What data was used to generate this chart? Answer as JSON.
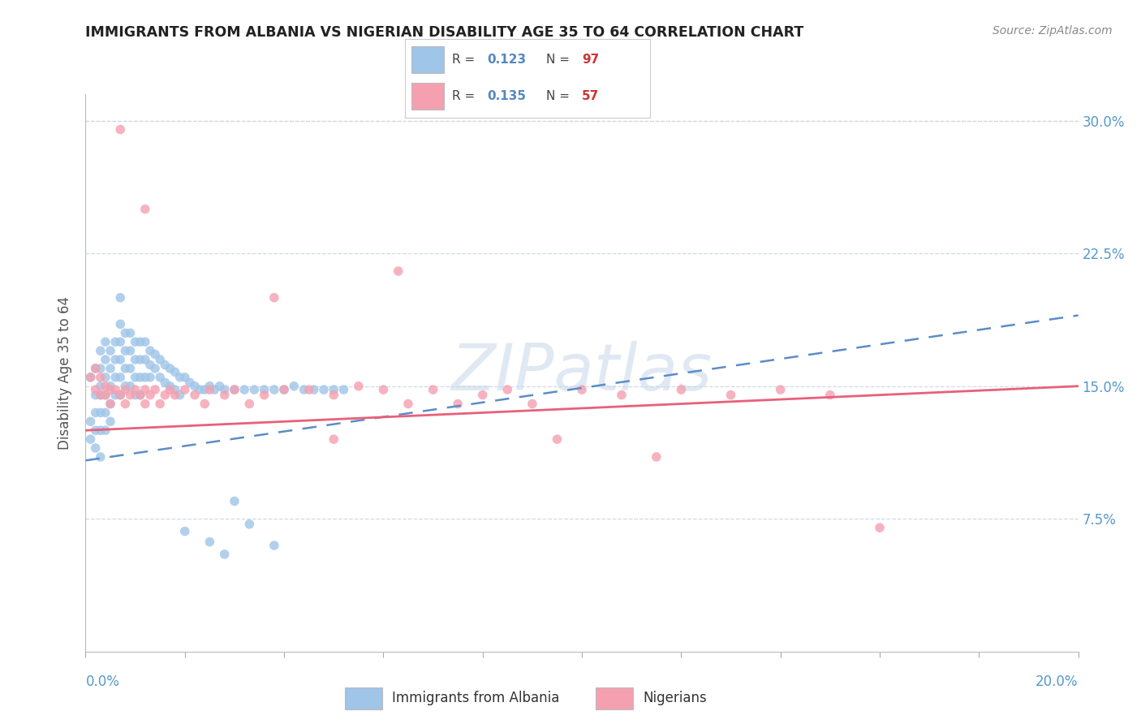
{
  "title": "IMMIGRANTS FROM ALBANIA VS NIGERIAN DISABILITY AGE 35 TO 64 CORRELATION CHART",
  "source": "Source: ZipAtlas.com",
  "ylabel": "Disability Age 35 to 64",
  "xmin": 0.0,
  "xmax": 0.2,
  "ymin": 0.0,
  "ymax": 0.315,
  "albania_color": "#9fc5e8",
  "nigeria_color": "#f4a0b0",
  "albania_trend_color": "#5b8dc8",
  "nigeria_trend_color": "#e8607a",
  "axis_label_color": "#5599cc",
  "title_color": "#222222",
  "source_color": "#888888",
  "grid_color": "#d0d8e8",
  "bg_color": "#ffffff",
  "watermark": "ZIPatlas",
  "watermark_color": "#c8d8ea",
  "ytick_vals": [
    0.075,
    0.15,
    0.225,
    0.3
  ],
  "ytick_labels": [
    "7.5%",
    "15.0%",
    "22.5%",
    "30.0%"
  ],
  "legend_R_color": "#5588bb",
  "legend_N_color": "#cc3333",
  "alb_x": [
    0.001,
    0.001,
    0.001,
    0.002,
    0.002,
    0.002,
    0.002,
    0.002,
    0.003,
    0.003,
    0.003,
    0.003,
    0.003,
    0.003,
    0.003,
    0.004,
    0.004,
    0.004,
    0.004,
    0.004,
    0.004,
    0.005,
    0.005,
    0.005,
    0.005,
    0.005,
    0.006,
    0.006,
    0.006,
    0.006,
    0.007,
    0.007,
    0.007,
    0.007,
    0.007,
    0.007,
    0.008,
    0.008,
    0.008,
    0.008,
    0.009,
    0.009,
    0.009,
    0.009,
    0.01,
    0.01,
    0.01,
    0.01,
    0.011,
    0.011,
    0.011,
    0.011,
    0.012,
    0.012,
    0.012,
    0.013,
    0.013,
    0.013,
    0.014,
    0.014,
    0.015,
    0.015,
    0.016,
    0.016,
    0.017,
    0.017,
    0.018,
    0.018,
    0.019,
    0.019,
    0.02,
    0.021,
    0.022,
    0.023,
    0.024,
    0.025,
    0.026,
    0.027,
    0.028,
    0.03,
    0.032,
    0.034,
    0.036,
    0.038,
    0.04,
    0.042,
    0.044,
    0.046,
    0.048,
    0.05,
    0.052,
    0.03,
    0.02,
    0.025,
    0.028,
    0.033,
    0.038
  ],
  "alb_y": [
    0.13,
    0.155,
    0.12,
    0.16,
    0.145,
    0.135,
    0.125,
    0.115,
    0.17,
    0.16,
    0.15,
    0.145,
    0.135,
    0.125,
    0.11,
    0.175,
    0.165,
    0.155,
    0.145,
    0.135,
    0.125,
    0.17,
    0.16,
    0.15,
    0.14,
    0.13,
    0.175,
    0.165,
    0.155,
    0.145,
    0.2,
    0.185,
    0.175,
    0.165,
    0.155,
    0.145,
    0.18,
    0.17,
    0.16,
    0.15,
    0.18,
    0.17,
    0.16,
    0.15,
    0.175,
    0.165,
    0.155,
    0.145,
    0.175,
    0.165,
    0.155,
    0.145,
    0.175,
    0.165,
    0.155,
    0.17,
    0.162,
    0.155,
    0.168,
    0.16,
    0.165,
    0.155,
    0.162,
    0.152,
    0.16,
    0.15,
    0.158,
    0.148,
    0.155,
    0.145,
    0.155,
    0.152,
    0.15,
    0.148,
    0.148,
    0.15,
    0.148,
    0.15,
    0.148,
    0.148,
    0.148,
    0.148,
    0.148,
    0.148,
    0.148,
    0.15,
    0.148,
    0.148,
    0.148,
    0.148,
    0.148,
    0.085,
    0.068,
    0.062,
    0.055,
    0.072,
    0.06
  ],
  "nig_x": [
    0.001,
    0.002,
    0.002,
    0.003,
    0.003,
    0.004,
    0.004,
    0.005,
    0.005,
    0.006,
    0.007,
    0.008,
    0.008,
    0.009,
    0.01,
    0.011,
    0.012,
    0.012,
    0.013,
    0.014,
    0.015,
    0.016,
    0.017,
    0.018,
    0.02,
    0.022,
    0.024,
    0.025,
    0.028,
    0.03,
    0.033,
    0.036,
    0.04,
    0.045,
    0.05,
    0.05,
    0.055,
    0.06,
    0.065,
    0.07,
    0.075,
    0.08,
    0.085,
    0.09,
    0.095,
    0.1,
    0.108,
    0.115,
    0.12,
    0.13,
    0.14,
    0.15,
    0.16,
    0.038,
    0.063,
    0.007,
    0.012
  ],
  "nig_y": [
    0.155,
    0.16,
    0.148,
    0.155,
    0.145,
    0.15,
    0.145,
    0.148,
    0.14,
    0.148,
    0.145,
    0.148,
    0.14,
    0.145,
    0.148,
    0.145,
    0.148,
    0.14,
    0.145,
    0.148,
    0.14,
    0.145,
    0.148,
    0.145,
    0.148,
    0.145,
    0.14,
    0.148,
    0.145,
    0.148,
    0.14,
    0.145,
    0.148,
    0.148,
    0.145,
    0.12,
    0.15,
    0.148,
    0.14,
    0.148,
    0.14,
    0.145,
    0.148,
    0.14,
    0.12,
    0.148,
    0.145,
    0.11,
    0.148,
    0.145,
    0.148,
    0.145,
    0.07,
    0.2,
    0.215,
    0.295,
    0.25
  ]
}
